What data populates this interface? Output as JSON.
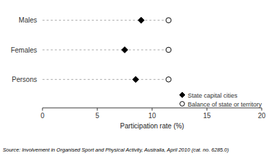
{
  "chart_data": {
    "type": "dot",
    "orientation": "horizontal",
    "categories": [
      "Males",
      "Females",
      "Persons"
    ],
    "series": [
      {
        "name": "State capital cities",
        "color": "#000000",
        "marker": "diamond",
        "values": [
          9.0,
          7.5,
          8.5
        ]
      },
      {
        "name": "Balance of state or territory",
        "color": "#ffffff",
        "marker": "circle",
        "values": [
          11.5,
          11.5,
          11.5
        ]
      }
    ],
    "xlim": [
      0,
      20
    ],
    "xticks": [
      0,
      5,
      10,
      15,
      20
    ],
    "xlabel": "Participation rate (%)",
    "legend": "lower right",
    "annotations": [
      "Source: Involvement in Organised Sport and Physical Activity, Australia, April 2010 (cat. no. 6285.0)"
    ]
  }
}
